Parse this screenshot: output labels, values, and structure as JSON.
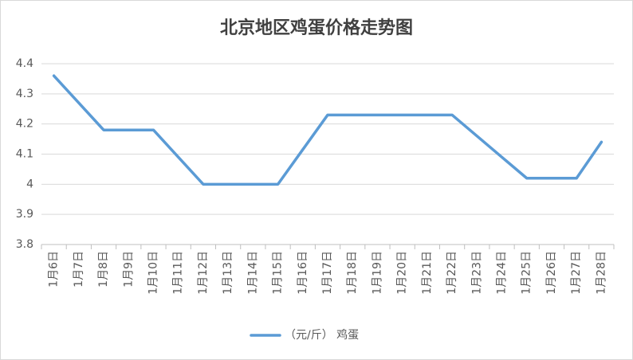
{
  "chart_data": {
    "type": "line",
    "title": "北京地区鸡蛋价格走势图",
    "categories": [
      "1月6日",
      "1月7日",
      "1月8日",
      "1月9日",
      "1月10日",
      "1月11日",
      "1月12日",
      "1月13日",
      "1月14日",
      "1月15日",
      "1月16日",
      "1月17日",
      "1月18日",
      "1月19日",
      "1月20日",
      "1月21日",
      "1月22日",
      "1月23日",
      "1月24日",
      "1月25日",
      "1月26日",
      "1月27日",
      "1月28日"
    ],
    "series": [
      {
        "name": "（元/斤） 鸡蛋",
        "color": "#5b9bd5",
        "values": [
          4.36,
          4.27,
          4.18,
          4.18,
          4.18,
          4.09,
          4.0,
          4.0,
          4.0,
          4.0,
          4.115,
          4.23,
          4.23,
          4.23,
          4.23,
          4.23,
          4.23,
          4.16,
          4.09,
          4.02,
          4.02,
          4.02,
          4.14
        ]
      }
    ],
    "ylim": [
      3.8,
      4.4
    ],
    "yticks": [
      3.8,
      3.9,
      4,
      4.1,
      4.2,
      4.3,
      4.4
    ],
    "grid": true,
    "legend": "bottom"
  }
}
